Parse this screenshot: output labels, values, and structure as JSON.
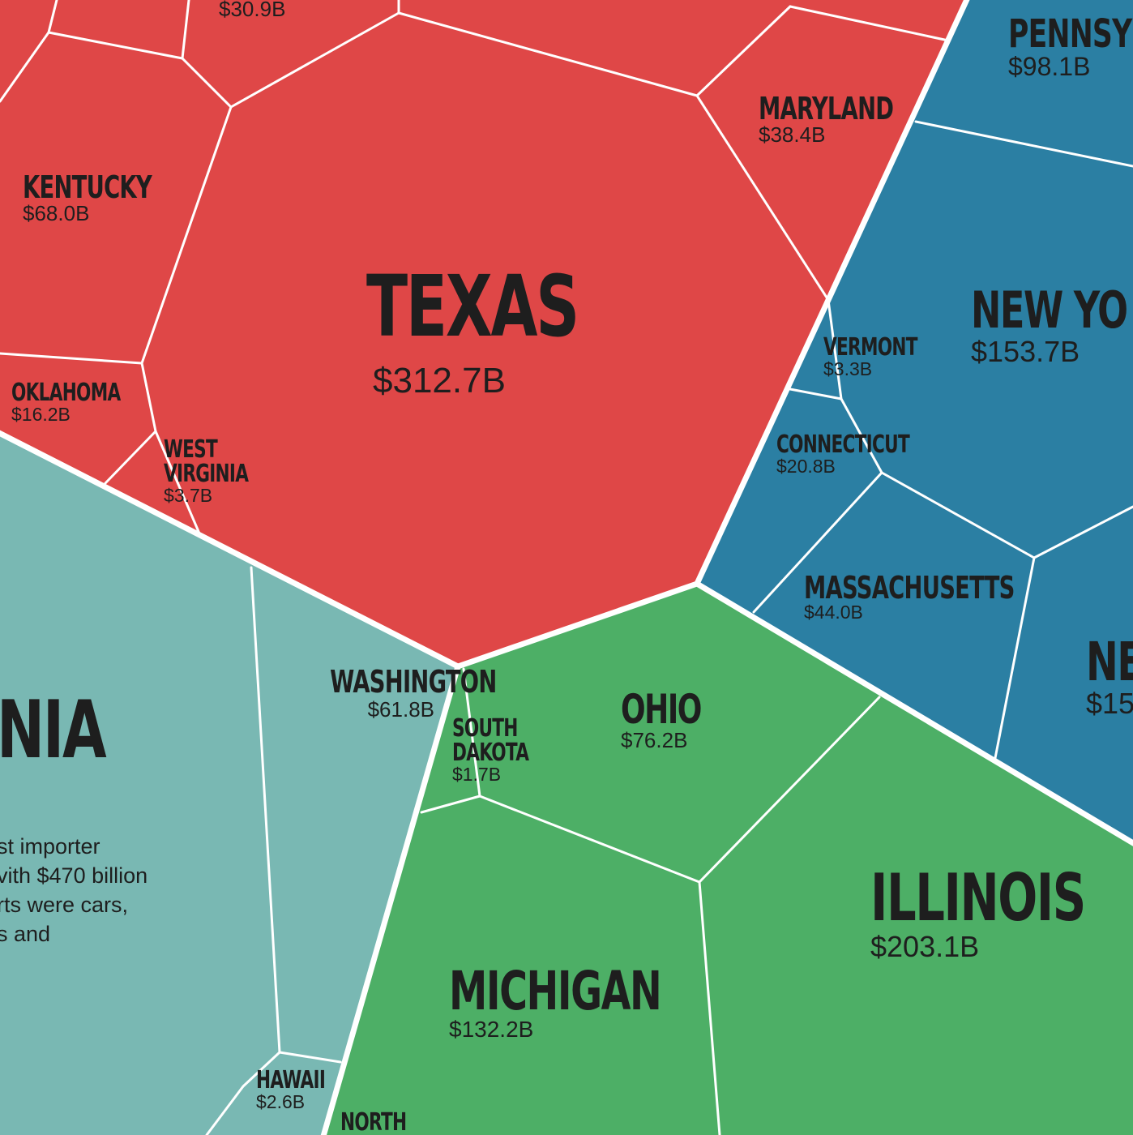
{
  "colors": {
    "red": "#df4747",
    "teal": "#79b8b3",
    "green": "#4daf66",
    "blue": "#2b7fa3",
    "border": "#ffffff",
    "text": "#1e1e1e"
  },
  "regions": [
    {
      "key": "kentucky",
      "name": "KENTUCKY",
      "value": "$68.0B",
      "group": "red"
    },
    {
      "key": "texas",
      "name": "TEXAS",
      "value": "$312.7B",
      "group": "red"
    },
    {
      "key": "maryland",
      "name": "MARYLAND",
      "value": "$38.4B",
      "group": "red"
    },
    {
      "key": "oklahoma",
      "name": "OKLAHOMA",
      "value": "$16.2B",
      "group": "red"
    },
    {
      "key": "west-virginia",
      "name": "WEST VIRGINIA",
      "value": "$3.7B",
      "group": "red"
    },
    {
      "key": "top-middle",
      "name": "",
      "value": "$30.9B",
      "group": "red"
    },
    {
      "key": "pennsylvania",
      "name": "PENNSY",
      "value": "$98.1B",
      "group": "blue"
    },
    {
      "key": "new-york",
      "name": "NEW YO",
      "value": "$153.7B",
      "group": "blue"
    },
    {
      "key": "vermont",
      "name": "VERMONT",
      "value": "$3.3B",
      "group": "blue"
    },
    {
      "key": "connecticut",
      "name": "CONNECTICUT",
      "value": "$20.8B",
      "group": "blue"
    },
    {
      "key": "massachusetts",
      "name": "MASSACHUSETTS",
      "value": "$44.0B",
      "group": "blue"
    },
    {
      "key": "new-jersey",
      "name": "NE",
      "value": "$15",
      "group": "blue"
    },
    {
      "key": "california",
      "name": "NIA",
      "value": "",
      "group": "teal"
    },
    {
      "key": "washington",
      "name": "WASHINGTON",
      "value": "$61.8B",
      "group": "teal"
    },
    {
      "key": "hawaii",
      "name": "HAWAII",
      "value": "$2.6B",
      "group": "teal"
    },
    {
      "key": "ohio",
      "name": "OHIO",
      "value": "$76.2B",
      "group": "green"
    },
    {
      "key": "south-dakota",
      "name": "SOUTH DAKOTA",
      "value": "$1.7B",
      "group": "green"
    },
    {
      "key": "michigan",
      "name": "MICHIGAN",
      "value": "$132.2B",
      "group": "green"
    },
    {
      "key": "illinois",
      "name": "ILLINOIS",
      "value": "$203.1B",
      "group": "green"
    },
    {
      "key": "north",
      "name": "NORTH",
      "value": "",
      "group": "green"
    }
  ],
  "california_text": [
    "st importer",
    "vith $470 billion",
    "rts were cars,",
    "s and"
  ]
}
